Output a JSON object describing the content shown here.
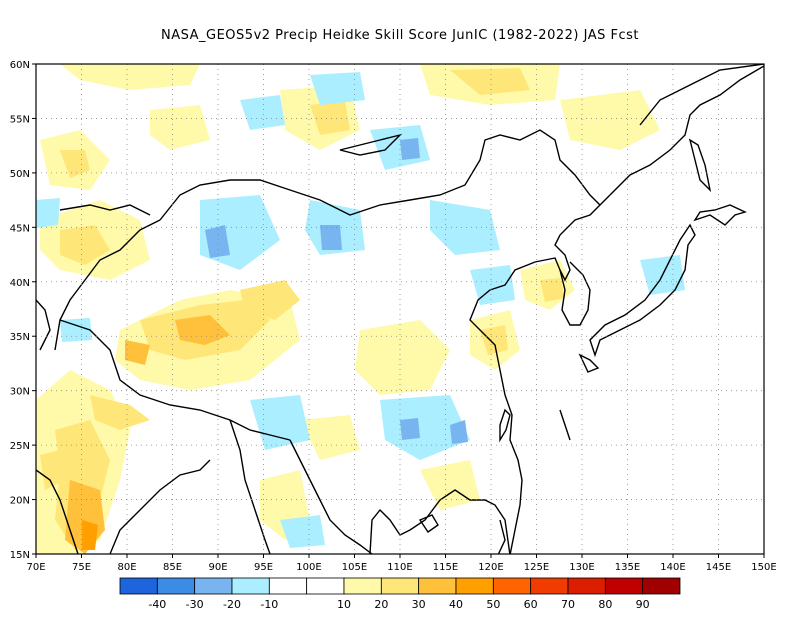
{
  "title": "NASA_GEOS5v2 Precip Heidke Skill Score JunIC (1982-2022) JAS Fcst",
  "map": {
    "lon_range": [
      70,
      150
    ],
    "lat_range": [
      15,
      60
    ],
    "lon_ticks": [
      "70E",
      "75E",
      "80E",
      "85E",
      "90E",
      "95E",
      "100E",
      "105E",
      "110E",
      "115E",
      "120E",
      "125E",
      "130E",
      "135E",
      "140E",
      "145E",
      "150E"
    ],
    "lat_ticks": [
      "15N",
      "20N",
      "25N",
      "30N",
      "35N",
      "40N",
      "45N",
      "50N",
      "55N",
      "60N"
    ],
    "grid": "dotted"
  },
  "colorbar": {
    "colors": [
      "#1e64dc",
      "#3c8ce6",
      "#78b4f0",
      "#aaeeff",
      "#ffffff",
      "#ffffff",
      "#fffaaa",
      "#ffe678",
      "#ffc03c",
      "#ffa000",
      "#ff6400",
      "#f03c00",
      "#dc1e00",
      "#c00000",
      "#a00000"
    ],
    "labels": [
      "-40",
      "-30",
      "-20",
      "-10",
      "10",
      "20",
      "30",
      "40",
      "50",
      "60",
      "70",
      "80",
      "90"
    ]
  }
}
